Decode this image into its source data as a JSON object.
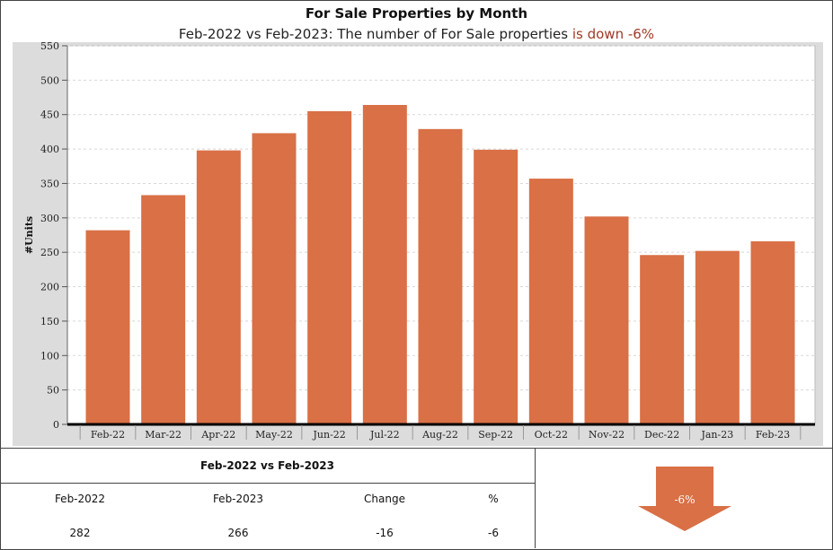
{
  "header": {
    "title": "For Sale Properties by Month",
    "subtitle_prefix": "Feb-2022 vs Feb-2023: The number of For Sale properties ",
    "subtitle_highlight": "is down -6%"
  },
  "chart_data": {
    "type": "bar",
    "categories": [
      "Feb-22",
      "Mar-22",
      "Apr-22",
      "May-22",
      "Jun-22",
      "Jul-22",
      "Aug-22",
      "Sep-22",
      "Oct-22",
      "Nov-22",
      "Dec-22",
      "Jan-23",
      "Feb-23"
    ],
    "values": [
      282,
      333,
      398,
      423,
      455,
      464,
      429,
      399,
      357,
      302,
      246,
      252,
      266
    ],
    "ylabel": "#Units",
    "xlabel": "",
    "ylim": [
      0,
      550
    ],
    "yticks": [
      0,
      50,
      100,
      150,
      200,
      250,
      300,
      350,
      400,
      450,
      500,
      550
    ],
    "grid": true,
    "bar_color": "#d97046",
    "plot_bg": "#ffffff",
    "outer_bg": "#dcdcdc"
  },
  "comparison": {
    "title": "Feb-2022 vs Feb-2023",
    "headers": [
      "Feb-2022",
      "Feb-2023",
      "Change",
      "%"
    ],
    "values": [
      "282",
      "266",
      "-16",
      "-6"
    ],
    "badge": "-6%",
    "direction": "down",
    "arrow_color": "#d97046"
  }
}
